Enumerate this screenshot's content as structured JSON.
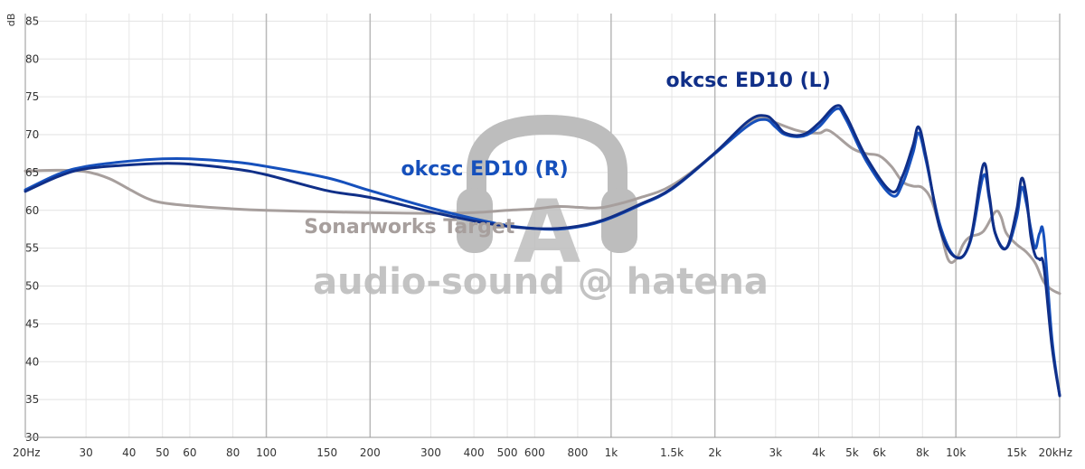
{
  "chart_data": {
    "type": "line",
    "x_scale": "log",
    "xlim": [
      20,
      20000
    ],
    "ylim": [
      30,
      86
    ],
    "ylabel": "dB",
    "y_ticks": [
      30,
      35,
      40,
      45,
      50,
      55,
      60,
      65,
      70,
      75,
      80,
      85
    ],
    "x_ticks": [
      {
        "value": 20,
        "label": "20Hz",
        "major": true
      },
      {
        "value": 30,
        "label": "30",
        "major": false
      },
      {
        "value": 40,
        "label": "40",
        "major": false
      },
      {
        "value": 50,
        "label": "50",
        "major": false
      },
      {
        "value": 60,
        "label": "60",
        "major": false
      },
      {
        "value": 80,
        "label": "80",
        "major": false
      },
      {
        "value": 100,
        "label": "100",
        "major": true
      },
      {
        "value": 150,
        "label": "150",
        "major": false
      },
      {
        "value": 200,
        "label": "200",
        "major": true
      },
      {
        "value": 300,
        "label": "300",
        "major": false
      },
      {
        "value": 400,
        "label": "400",
        "major": false
      },
      {
        "value": 500,
        "label": "500",
        "major": false
      },
      {
        "value": 600,
        "label": "600",
        "major": false
      },
      {
        "value": 800,
        "label": "800",
        "major": false
      },
      {
        "value": 1000,
        "label": "1k",
        "major": true
      },
      {
        "value": 1500,
        "label": "1.5k",
        "major": false
      },
      {
        "value": 2000,
        "label": "2k",
        "major": true
      },
      {
        "value": 3000,
        "label": "3k",
        "major": false
      },
      {
        "value": 4000,
        "label": "4k",
        "major": false
      },
      {
        "value": 5000,
        "label": "5k",
        "major": false
      },
      {
        "value": 6000,
        "label": "6k",
        "major": false
      },
      {
        "value": 8000,
        "label": "8k",
        "major": false
      },
      {
        "value": 10000,
        "label": "10k",
        "major": true
      },
      {
        "value": 15000,
        "label": "15k",
        "major": false
      },
      {
        "value": 20000,
        "label": "20kHz",
        "major": true
      }
    ],
    "series": [
      {
        "name": "Sonarworks Target",
        "color": "#a79f9d",
        "width": 3,
        "points": [
          [
            20,
            65.2
          ],
          [
            25,
            65.3
          ],
          [
            30,
            65.1
          ],
          [
            35,
            64.2
          ],
          [
            40,
            62.8
          ],
          [
            45,
            61.6
          ],
          [
            50,
            61.0
          ],
          [
            60,
            60.6
          ],
          [
            80,
            60.2
          ],
          [
            100,
            60.0
          ],
          [
            150,
            59.8
          ],
          [
            200,
            59.7
          ],
          [
            300,
            59.6
          ],
          [
            400,
            59.7
          ],
          [
            500,
            60.0
          ],
          [
            600,
            60.2
          ],
          [
            700,
            60.5
          ],
          [
            800,
            60.4
          ],
          [
            900,
            60.3
          ],
          [
            1000,
            60.6
          ],
          [
            1200,
            61.6
          ],
          [
            1500,
            63.3
          ],
          [
            2000,
            67.5
          ],
          [
            2500,
            71.5
          ],
          [
            2800,
            72.2
          ],
          [
            3000,
            71.6
          ],
          [
            3500,
            70.5
          ],
          [
            4000,
            70.2
          ],
          [
            4300,
            70.5
          ],
          [
            5000,
            68.2
          ],
          [
            5500,
            67.5
          ],
          [
            6000,
            67.2
          ],
          [
            6500,
            65.8
          ],
          [
            7000,
            63.8
          ],
          [
            7500,
            63.2
          ],
          [
            8000,
            63.0
          ],
          [
            8500,
            61.3
          ],
          [
            9000,
            57.5
          ],
          [
            9500,
            53.5
          ],
          [
            10000,
            53.5
          ],
          [
            10500,
            55.5
          ],
          [
            11000,
            56.5
          ],
          [
            12000,
            57.2
          ],
          [
            13000,
            59.8
          ],
          [
            13500,
            59.2
          ],
          [
            14000,
            57.0
          ],
          [
            15000,
            55.5
          ],
          [
            16000,
            54.5
          ],
          [
            17000,
            53.0
          ],
          [
            18000,
            50.5
          ],
          [
            19000,
            49.5
          ],
          [
            20000,
            49.0
          ]
        ]
      },
      {
        "name": "okcsc ED10 (R)",
        "color": "#1650bc",
        "width": 3,
        "points": [
          [
            20,
            62.7
          ],
          [
            25,
            64.8
          ],
          [
            30,
            65.8
          ],
          [
            40,
            66.5
          ],
          [
            50,
            66.8
          ],
          [
            60,
            66.8
          ],
          [
            80,
            66.4
          ],
          [
            100,
            65.8
          ],
          [
            150,
            64.3
          ],
          [
            200,
            62.6
          ],
          [
            300,
            60.3
          ],
          [
            400,
            58.9
          ],
          [
            500,
            58.0
          ],
          [
            600,
            57.6
          ],
          [
            700,
            57.5
          ],
          [
            800,
            57.8
          ],
          [
            900,
            58.3
          ],
          [
            1000,
            59.0
          ],
          [
            1200,
            60.6
          ],
          [
            1500,
            62.8
          ],
          [
            2000,
            67.5
          ],
          [
            2500,
            71.2
          ],
          [
            2800,
            72.0
          ],
          [
            3000,
            71.0
          ],
          [
            3200,
            70.0
          ],
          [
            3600,
            69.8
          ],
          [
            4000,
            71.0
          ],
          [
            4500,
            73.4
          ],
          [
            4800,
            72.0
          ],
          [
            5500,
            66.5
          ],
          [
            6500,
            62.0
          ],
          [
            7000,
            63.5
          ],
          [
            7500,
            67.5
          ],
          [
            7800,
            70.2
          ],
          [
            8200,
            66.5
          ],
          [
            9000,
            58.0
          ],
          [
            10000,
            53.8
          ],
          [
            11000,
            55.8
          ],
          [
            12000,
            64.5
          ],
          [
            12500,
            61.5
          ],
          [
            13000,
            57.0
          ],
          [
            14000,
            55.0
          ],
          [
            15000,
            59.0
          ],
          [
            15500,
            63.0
          ],
          [
            16000,
            61.0
          ],
          [
            16500,
            57.5
          ],
          [
            17000,
            55.0
          ],
          [
            17500,
            57.0
          ],
          [
            18000,
            56.5
          ],
          [
            19000,
            43.0
          ],
          [
            20000,
            35.5
          ]
        ]
      },
      {
        "name": "okcsc ED10 (L)",
        "color": "#102f88",
        "width": 3,
        "points": [
          [
            20,
            62.5
          ],
          [
            25,
            64.5
          ],
          [
            30,
            65.5
          ],
          [
            40,
            66.0
          ],
          [
            50,
            66.2
          ],
          [
            60,
            66.1
          ],
          [
            80,
            65.5
          ],
          [
            100,
            64.7
          ],
          [
            150,
            62.6
          ],
          [
            200,
            61.7
          ],
          [
            300,
            59.8
          ],
          [
            400,
            58.6
          ],
          [
            500,
            57.9
          ],
          [
            600,
            57.6
          ],
          [
            700,
            57.6
          ],
          [
            800,
            57.9
          ],
          [
            900,
            58.4
          ],
          [
            1000,
            59.1
          ],
          [
            1200,
            60.7
          ],
          [
            1500,
            62.9
          ],
          [
            2000,
            67.6
          ],
          [
            2500,
            71.8
          ],
          [
            2800,
            72.5
          ],
          [
            3000,
            71.5
          ],
          [
            3200,
            70.2
          ],
          [
            3600,
            70.0
          ],
          [
            4000,
            71.5
          ],
          [
            4500,
            73.8
          ],
          [
            4800,
            72.5
          ],
          [
            5500,
            67.0
          ],
          [
            6500,
            62.5
          ],
          [
            7000,
            64.5
          ],
          [
            7500,
            68.5
          ],
          [
            7800,
            71.0
          ],
          [
            8200,
            67.0
          ],
          [
            9000,
            57.5
          ],
          [
            10000,
            53.8
          ],
          [
            11000,
            56.0
          ],
          [
            12000,
            66.0
          ],
          [
            12500,
            62.0
          ],
          [
            13000,
            57.0
          ],
          [
            14000,
            55.0
          ],
          [
            15000,
            60.0
          ],
          [
            15500,
            64.2
          ],
          [
            16000,
            62.0
          ],
          [
            16500,
            56.5
          ],
          [
            17000,
            54.0
          ],
          [
            17500,
            53.5
          ],
          [
            18000,
            52.5
          ],
          [
            19000,
            42.0
          ],
          [
            20000,
            35.5
          ]
        ]
      }
    ],
    "labels": [
      {
        "series": 0,
        "text": "Sonarworks Target",
        "x": 260,
        "y": 57.0,
        "color": "#a79f9d",
        "size": 22
      },
      {
        "series": 1,
        "text": "okcsc ED10 (R)",
        "x": 430,
        "y": 64.6,
        "color": "#1650bc",
        "size": 22
      },
      {
        "series": 2,
        "text": "okcsc ED10 (L)",
        "x": 2500,
        "y": 76.3,
        "color": "#102f88",
        "size": 22
      }
    ]
  },
  "watermark": {
    "text": "audio-sound @ hatena",
    "logo_letter": "A",
    "color": "#b8b8b8"
  }
}
